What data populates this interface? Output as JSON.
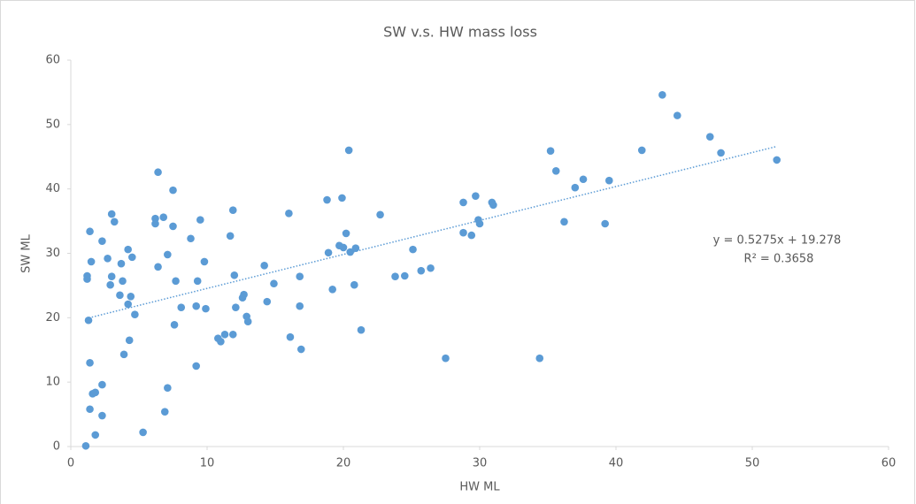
{
  "chart_data": {
    "type": "scatter",
    "title": "SW v.s. HW mass loss",
    "x_label": "HW ML",
    "y_label": "SW ML",
    "color": "#5b9bd5",
    "x": [
      1.1,
      1.2,
      1.2,
      1.4,
      1.5,
      1.3,
      1.4,
      1.4,
      1.6,
      1.8,
      1.8,
      2.3,
      2.3,
      2.3,
      2.7,
      3.0,
      3.2,
      2.9,
      3.0,
      3.6,
      3.7,
      3.8,
      3.9,
      4.2,
      4.5,
      4.2,
      4.4,
      4.3,
      4.7,
      5.3,
      6.4,
      6.2,
      6.2,
      6.4,
      6.8,
      7.1,
      7.5,
      7.5,
      7.7,
      7.6,
      7.1,
      6.9,
      8.1,
      8.8,
      9.2,
      9.3,
      9.5,
      9.8,
      9.9,
      9.2,
      10.8,
      11.0,
      11.3,
      11.9,
      11.7,
      11.9,
      12.0,
      12.1,
      12.6,
      12.7,
      12.9,
      13.0,
      14.2,
      14.4,
      14.9,
      16.0,
      16.1,
      16.8,
      16.8,
      16.9,
      18.8,
      18.9,
      19.2,
      19.9,
      19.7,
      20.0,
      20.2,
      20.4,
      20.5,
      20.9,
      20.8,
      21.3,
      22.7,
      23.8,
      24.5,
      25.1,
      25.7,
      26.4,
      27.5,
      28.8,
      28.8,
      29.4,
      29.7,
      29.9,
      30.0,
      30.9,
      31.0,
      34.4,
      35.2,
      35.6,
      36.2,
      37.0,
      37.6,
      39.2,
      39.5,
      41.9,
      43.4,
      44.5,
      46.9,
      47.7,
      51.8
    ],
    "y": [
      0.1,
      26.0,
      26.5,
      33.4,
      28.7,
      19.6,
      13.0,
      5.8,
      8.2,
      8.4,
      1.8,
      31.9,
      9.6,
      4.8,
      29.2,
      36.1,
      34.9,
      25.1,
      26.4,
      23.5,
      28.4,
      25.7,
      14.3,
      30.6,
      29.4,
      22.1,
      23.3,
      16.5,
      20.5,
      2.2,
      42.6,
      35.4,
      34.6,
      27.9,
      35.6,
      29.8,
      34.2,
      39.8,
      25.7,
      18.9,
      9.1,
      5.4,
      21.6,
      32.3,
      21.8,
      25.7,
      35.2,
      28.7,
      21.4,
      12.5,
      16.8,
      16.3,
      17.4,
      17.4,
      32.7,
      36.7,
      26.6,
      21.6,
      23.1,
      23.6,
      20.2,
      19.4,
      28.1,
      22.5,
      25.3,
      36.2,
      17.0,
      26.4,
      21.8,
      15.1,
      38.3,
      30.1,
      24.4,
      38.6,
      31.2,
      30.9,
      33.1,
      46.0,
      30.2,
      30.8,
      25.1,
      18.1,
      36.0,
      26.4,
      26.5,
      30.6,
      27.3,
      27.7,
      13.7,
      37.9,
      33.2,
      32.8,
      38.9,
      35.2,
      34.6,
      37.9,
      37.5,
      13.7,
      45.9,
      42.8,
      34.9,
      40.2,
      41.5,
      34.6,
      41.3,
      46.0,
      54.6,
      51.4,
      48.1,
      45.6,
      44.5
    ],
    "xlim": [
      0,
      60
    ],
    "xticks": [
      0,
      10,
      20,
      30,
      40,
      50,
      60
    ],
    "ylim": [
      0,
      60
    ],
    "yticks": [
      0,
      10,
      20,
      30,
      40,
      50,
      60
    ],
    "trendline": {
      "slope": 0.5275,
      "intercept": 19.278,
      "color": "#5b9bd5",
      "equation": "y = 0.5275x + 19.278",
      "r_squared": "R² = 0.3658"
    }
  }
}
